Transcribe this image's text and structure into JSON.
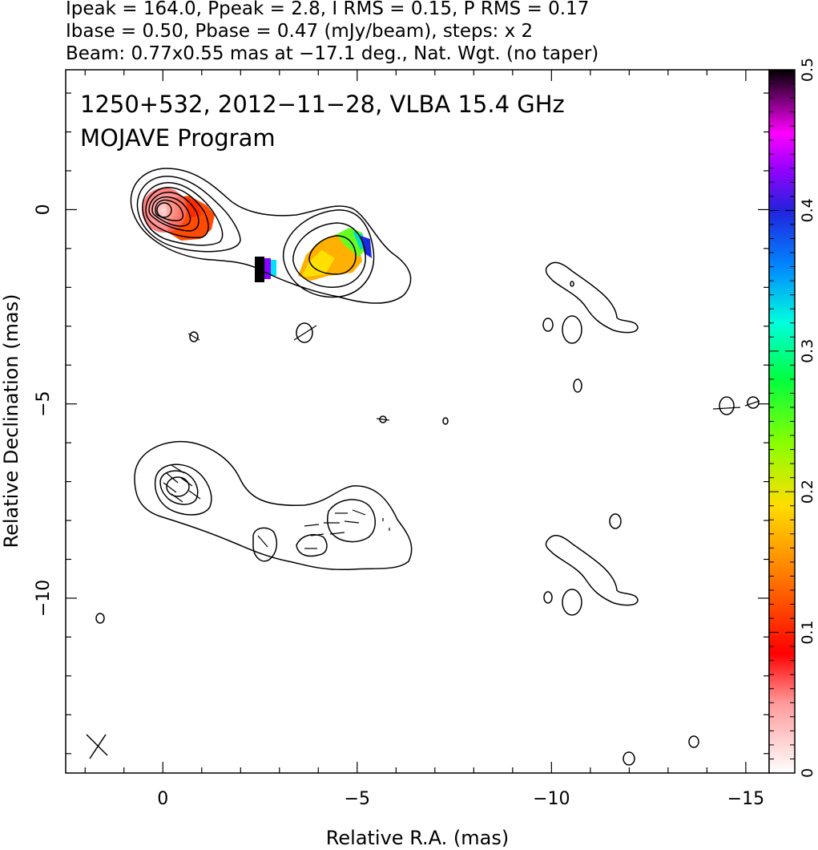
{
  "chart_data": {
    "type": "contour",
    "header": [
      "Ipeak = 164.0, Ppeak = 2.8, I RMS = 0.15, P RMS = 0.17",
      "Ibase = 0.50, Pbase = 0.47 (mJy/beam), steps: x 2",
      "Beam: 0.77x0.55 mas at −17.1 deg., Nat. Wgt. (no taper)"
    ],
    "annotation": [
      "1250+532, 2012−11−28, VLBA 15.4 GHz",
      "MOJAVE Program"
    ],
    "xlabel": "Relative R.A. (mas)",
    "ylabel": "Relative Declination (mas)",
    "xlim": [
      2.5,
      -15.6
    ],
    "ylim": [
      -14.5,
      3.6
    ],
    "x_ticks": [
      0,
      -5,
      -10,
      -15
    ],
    "x_tick_labels": [
      "0",
      "−5",
      "−10",
      "−15"
    ],
    "y_ticks": [
      0,
      -5,
      -10
    ],
    "y_tick_labels": [
      "0",
      "−5",
      "−10"
    ],
    "colorbar": {
      "range": [
        0,
        0.5
      ],
      "ticks": [
        0,
        0.1,
        0.2,
        0.3,
        0.4,
        0.5
      ],
      "tick_labels": [
        "0",
        "0.1",
        "0.2",
        "0.3",
        "0.4",
        "0.5"
      ]
    },
    "beam": {
      "major_mas": 0.77,
      "minor_mas": 0.55,
      "pa_deg": -17.1
    },
    "upper_panel": {
      "core": {
        "x": 0,
        "y": 0,
        "peak_mJy": 164.0
      },
      "jet_knot": {
        "x": -4.6,
        "y": -1.3
      }
    },
    "lower_panel_offset_mas": -7.3
  }
}
